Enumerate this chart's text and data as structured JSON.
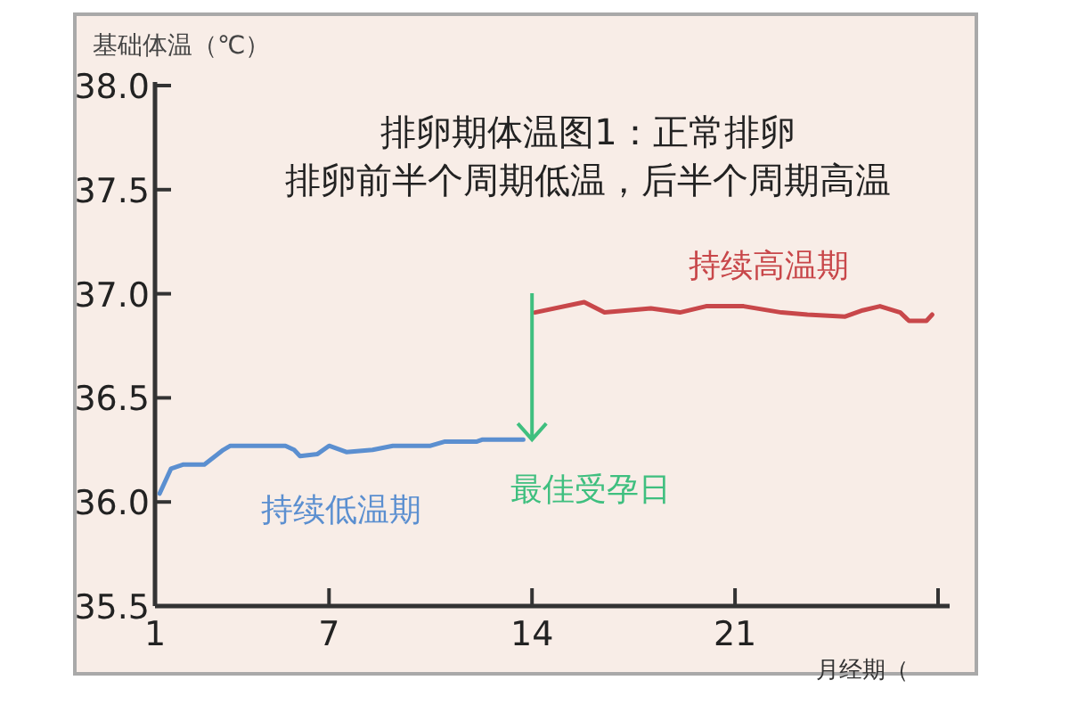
{
  "chart_data": {
    "type": "line",
    "title": "排卵期体温图1：正常排卵",
    "subtitle": "排卵前半个周期低温，后半个周期高温",
    "ylabel": "基础体温（℃）",
    "xlabel": "月经期（",
    "xlim": [
      1,
      28.4
    ],
    "xticks": [
      1,
      7,
      14,
      21,
      {
        "value": 28,
        "label": null
      }
    ],
    "ylim": [
      35.5,
      38.0
    ],
    "yticks": [
      {
        "value": 35.5,
        "label": "35.5"
      },
      {
        "value": 36,
        "label": "36.0"
      },
      {
        "value": 36.5,
        "label": "36.5"
      },
      {
        "value": 37,
        "label": "37.0"
      },
      {
        "value": 37.5,
        "label": "37.5"
      },
      {
        "value": 38,
        "label": "38.0"
      }
    ],
    "grid": false,
    "legend": false,
    "marker": "none",
    "line_style": "solid",
    "series": [
      {
        "name": "持续低温期",
        "color": "#5b8fd0",
        "x": [
          1.16,
          1.55,
          1.98,
          2.7,
          3.35,
          3.6,
          5.5,
          5.8,
          6.0,
          6.6,
          7.0,
          7.6,
          8.5,
          9.2,
          10.5,
          11.0,
          12.1,
          12.3,
          13.7
        ],
        "values": [
          36.04,
          36.16,
          36.18,
          36.18,
          36.25,
          36.27,
          36.27,
          36.25,
          36.22,
          36.23,
          36.27,
          36.24,
          36.25,
          36.27,
          36.27,
          36.29,
          36.29,
          36.3,
          36.3
        ]
      },
      {
        "name": "持续高温期",
        "color": "#c8474a",
        "x": [
          14.1,
          15.8,
          16.5,
          18.1,
          19.1,
          20.0,
          21.3,
          22.6,
          23.5,
          24.8,
          25.4,
          26.0,
          26.7,
          27.0,
          27.6,
          27.8
        ],
        "values": [
          36.91,
          36.96,
          36.91,
          36.93,
          36.91,
          36.94,
          36.94,
          36.91,
          36.9,
          36.89,
          36.92,
          36.94,
          36.91,
          36.87,
          36.87,
          36.9
        ]
      }
    ],
    "annotations": [
      {
        "text": "最佳受孕日",
        "x": 14,
        "y": 36.3
      }
    ]
  }
}
